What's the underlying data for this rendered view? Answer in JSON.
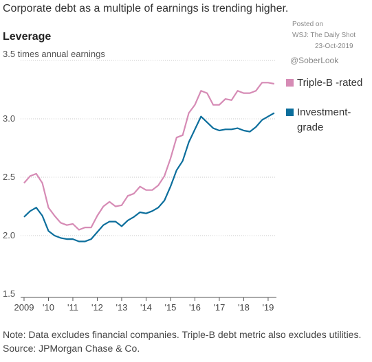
{
  "chart_data": {
    "type": "line",
    "title": "Corporate debt as a multiple of earnings is trending higher.",
    "subtitle": "Leverage",
    "annotations": [
      "Posted on",
      "WSJ: The Daily Shot",
      "23-Oct-2019",
      "@SoberLook"
    ],
    "note": "Note: Data excludes financial companies. Triple-B debt metric also excludes utilities.",
    "source": "Source: JPMorgan Chase & Co.",
    "x": [
      2009,
      2009.25,
      2009.5,
      2009.75,
      2010,
      2010.25,
      2010.5,
      2010.75,
      2011,
      2011.25,
      2011.5,
      2011.75,
      2012,
      2012.25,
      2012.5,
      2012.75,
      2013,
      2013.25,
      2013.5,
      2013.75,
      2014,
      2014.25,
      2014.5,
      2014.75,
      2015,
      2015.25,
      2015.5,
      2015.75,
      2016,
      2016.25,
      2016.5,
      2016.75,
      2017,
      2017.25,
      2017.5,
      2017.75,
      2018,
      2018.25,
      2018.5,
      2018.75,
      2019,
      2019.25
    ],
    "series": [
      {
        "name": "Triple-B -rated",
        "color": "#d68bb5",
        "values": [
          2.45,
          2.51,
          2.53,
          2.45,
          2.24,
          2.17,
          2.11,
          2.09,
          2.1,
          2.05,
          2.07,
          2.07,
          2.17,
          2.25,
          2.29,
          2.25,
          2.26,
          2.34,
          2.36,
          2.42,
          2.39,
          2.39,
          2.43,
          2.51,
          2.66,
          2.84,
          2.86,
          3.05,
          3.12,
          3.24,
          3.22,
          3.12,
          3.12,
          3.17,
          3.16,
          3.24,
          3.22,
          3.22,
          3.24,
          3.31,
          3.31,
          3.3
        ]
      },
      {
        "name": "Investment-grade",
        "color": "#0b6e9c",
        "values": [
          2.16,
          2.21,
          2.24,
          2.17,
          2.04,
          2.0,
          1.98,
          1.97,
          1.97,
          1.95,
          1.95,
          1.97,
          2.03,
          2.09,
          2.12,
          2.12,
          2.08,
          2.13,
          2.16,
          2.2,
          2.19,
          2.21,
          2.24,
          2.3,
          2.42,
          2.56,
          2.64,
          2.8,
          2.91,
          3.02,
          2.97,
          2.92,
          2.9,
          2.91,
          2.91,
          2.92,
          2.9,
          2.89,
          2.93,
          2.99,
          3.02,
          3.05
        ]
      }
    ],
    "xlim": [
      2008.86,
      2019.34
    ],
    "xticks": [
      2009,
      {
        "value": 2010,
        "label": "'10"
      },
      {
        "value": 2011,
        "label": "'11"
      },
      {
        "value": 2012,
        "label": "'12"
      },
      {
        "value": 2013,
        "label": "'13"
      },
      {
        "value": 2014,
        "label": "'14"
      },
      {
        "value": 2015,
        "label": "'15"
      },
      {
        "value": 2016,
        "label": "'16"
      },
      {
        "value": 2017,
        "label": "'17"
      },
      {
        "value": 2018,
        "label": "'18"
      },
      {
        "value": 2019,
        "label": "'19"
      }
    ],
    "ylim": [
      1.5,
      3.5
    ],
    "yticks": [
      1.5,
      {
        "value": 2,
        "label": "2.0"
      },
      2.5,
      {
        "value": 3,
        "label": "3.0"
      },
      {
        "value": 3.5,
        "label": "3.5 times annual earnings"
      }
    ],
    "grid": true
  }
}
